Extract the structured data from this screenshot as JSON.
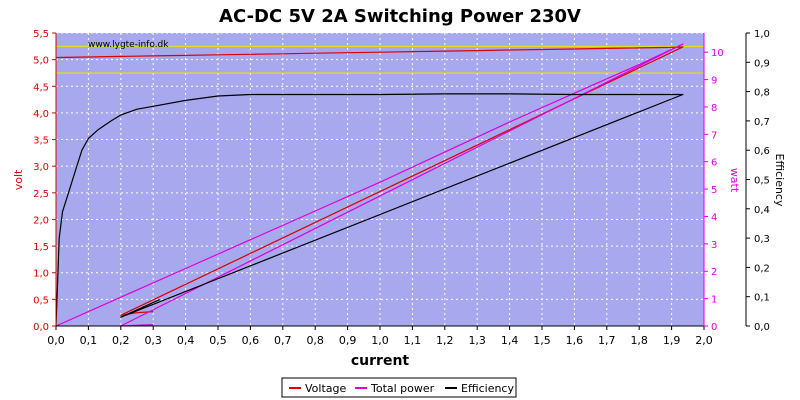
{
  "chart_data": {
    "type": "line",
    "title": "AC-DC 5V 2A Switching Power 230V",
    "watermark": "www.lygte-info.dk",
    "xlabel": "current",
    "ylabel_left": "volt",
    "ylabel_right1": "watt",
    "ylabel_right2": "Efficiency",
    "xlim": [
      0,
      2.0
    ],
    "ylim_left": [
      0,
      5.5
    ],
    "ylim_right1": [
      0,
      10.7
    ],
    "ylim_right2": [
      0,
      1.0
    ],
    "grid": true,
    "legend_placement": "bottom-center",
    "x_ticks": [
      "0,0",
      "0,1",
      "0,2",
      "0,3",
      "0,4",
      "0,5",
      "0,6",
      "0,7",
      "0,8",
      "0,9",
      "1,0",
      "1,1",
      "1,2",
      "1,3",
      "1,4",
      "1,5",
      "1,6",
      "1,7",
      "1,8",
      "1,9",
      "2,0"
    ],
    "y_left_ticks": [
      "0,0",
      "0,5",
      "1,0",
      "1,5",
      "2,0",
      "2,5",
      "3,0",
      "3,5",
      "4,0",
      "4,5",
      "5,0",
      "5,5"
    ],
    "y_right1_ticks": [
      "0",
      "1",
      "2",
      "3",
      "4",
      "5",
      "6",
      "7",
      "8",
      "9",
      "10"
    ],
    "y_right2_ticks": [
      "0,0",
      "0,1",
      "0,2",
      "0,3",
      "0,4",
      "0,5",
      "0,6",
      "0,7",
      "0,8",
      "0,9",
      "1,0"
    ],
    "reference_lines_volt": [
      4.75,
      5.25
    ],
    "series": [
      {
        "name": "Voltage",
        "axis": "left",
        "color": "#dd0000",
        "x": [
          0.0,
          0.1,
          0.2,
          0.3,
          0.4,
          0.5,
          0.6,
          0.7,
          0.8,
          0.9,
          1.0,
          1.1,
          1.2,
          1.3,
          1.4,
          1.5,
          1.6,
          1.7,
          1.8,
          1.9,
          1.935,
          0.2,
          0.25,
          0.3
        ],
        "values": [
          5.04,
          5.05,
          5.06,
          5.07,
          5.08,
          5.09,
          5.1,
          5.11,
          5.12,
          5.13,
          5.14,
          5.15,
          5.16,
          5.17,
          5.18,
          5.19,
          5.2,
          5.21,
          5.22,
          5.23,
          5.24,
          0.2,
          0.25,
          0.27
        ]
      },
      {
        "name": "Total power",
        "axis": "right1",
        "color": "#dd00dd",
        "x": [
          0.0,
          0.2,
          0.4,
          0.6,
          0.8,
          1.0,
          1.2,
          1.4,
          1.6,
          1.8,
          1.935,
          0.2,
          0.3
        ],
        "values": [
          0.0,
          1.05,
          2.1,
          3.15,
          4.2,
          5.25,
          6.35,
          7.45,
          8.5,
          9.55,
          10.3,
          0.0,
          0.05
        ]
      },
      {
        "name": "Efficiency",
        "axis": "right2",
        "color": "#000000",
        "x": [
          0.0,
          0.01,
          0.02,
          0.04,
          0.06,
          0.08,
          0.1,
          0.13,
          0.17,
          0.2,
          0.25,
          0.3,
          0.4,
          0.5,
          0.6,
          0.8,
          1.0,
          1.2,
          1.4,
          1.6,
          1.8,
          1.935,
          0.2,
          0.32
        ],
        "values": [
          0.0,
          0.3,
          0.39,
          0.46,
          0.53,
          0.6,
          0.64,
          0.67,
          0.7,
          0.72,
          0.74,
          0.75,
          0.77,
          0.785,
          0.79,
          0.79,
          0.79,
          0.792,
          0.792,
          0.79,
          0.79,
          0.79,
          0.03,
          0.09
        ]
      }
    ]
  },
  "legend": [
    {
      "label": "Voltage",
      "color": "#dd0000"
    },
    {
      "label": "Total power",
      "color": "#dd00dd"
    },
    {
      "label": "Efficiency",
      "color": "#000000"
    }
  ]
}
